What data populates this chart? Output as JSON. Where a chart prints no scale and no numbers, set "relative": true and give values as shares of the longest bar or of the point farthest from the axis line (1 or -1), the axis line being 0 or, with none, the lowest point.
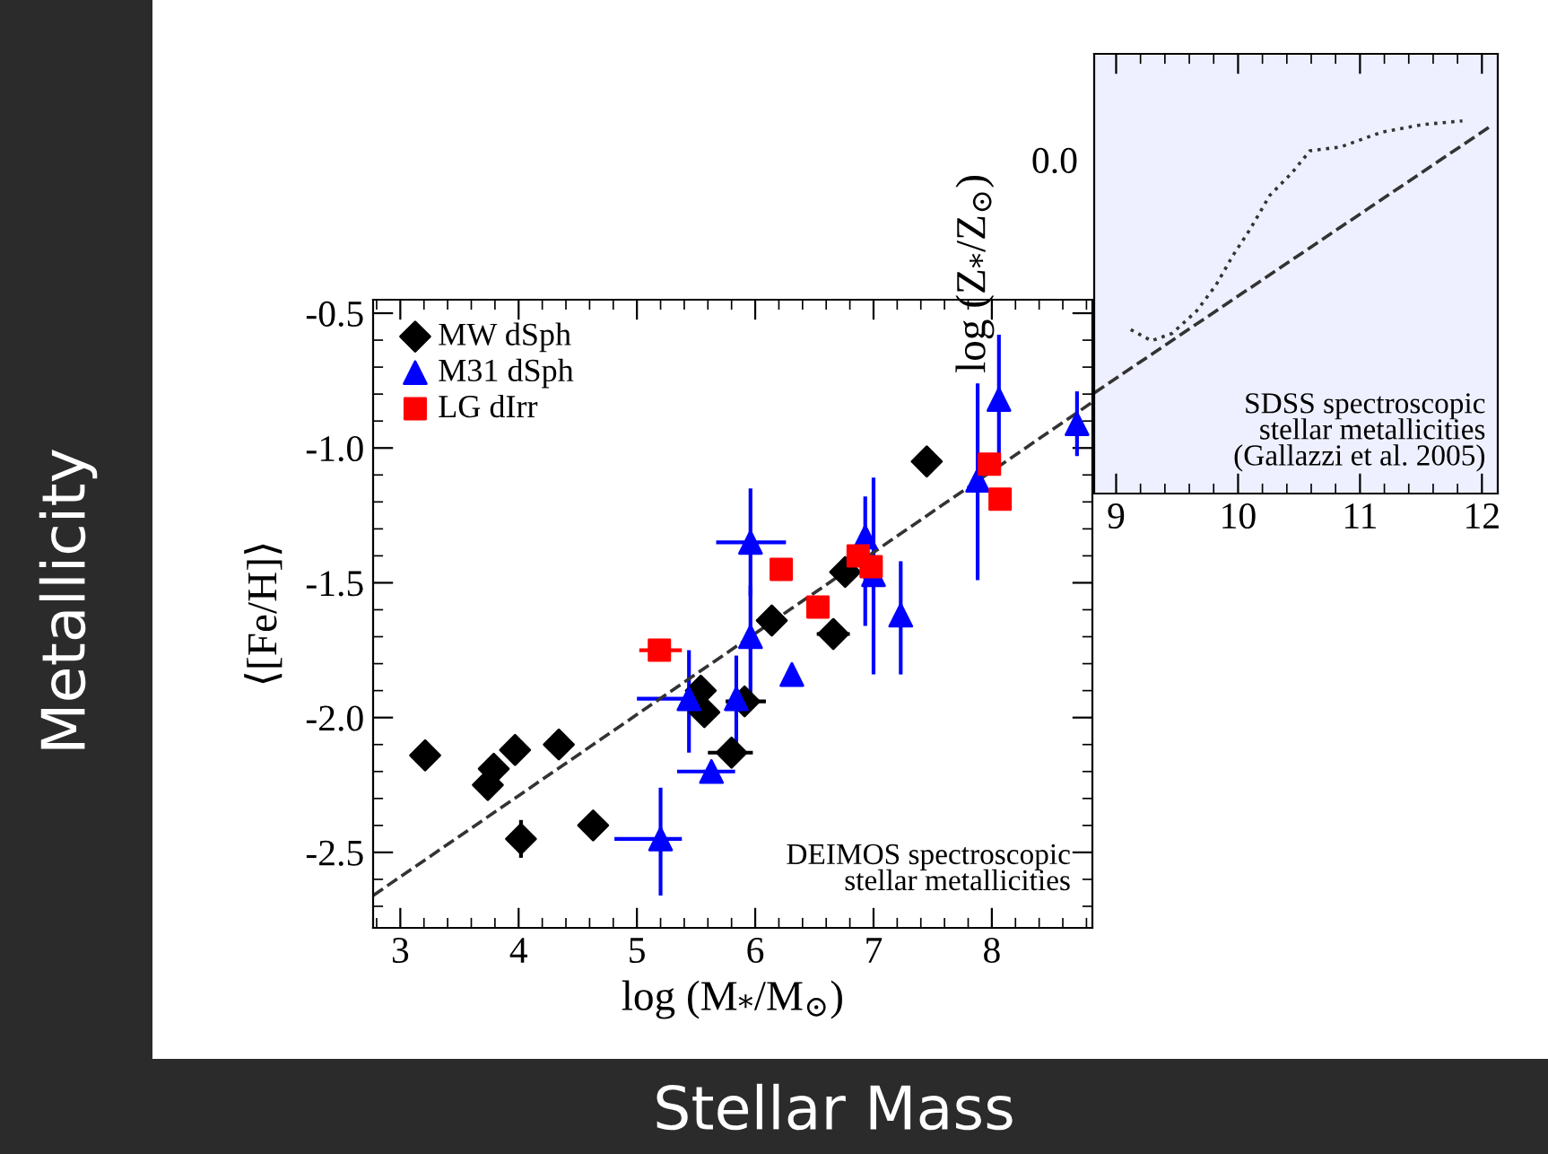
{
  "chart_data": [
    {
      "type": "scatter",
      "xlabel": "log (M$_{*}$/M$_{⊙}$)",
      "ylabel": "⟨[Fe/H]⟩",
      "xlim": [
        2.77,
        8.85
      ],
      "ylim": [
        -2.78,
        -0.45
      ],
      "xticks": [
        3,
        4,
        5,
        6,
        7,
        8
      ],
      "yticks": [
        {
          "value": -0.5,
          "label": "-0.5"
        },
        {
          "value": -1.0,
          "label": "-1.0"
        },
        {
          "value": -1.5,
          "label": "-1.5"
        },
        {
          "value": -2.0,
          "label": "-2.0"
        },
        {
          "value": -2.5,
          "label": "-2.5"
        }
      ],
      "legend": "top left",
      "grid": false,
      "annotations": [
        "DEIMOS spectroscopic\nstellar metallicities"
      ],
      "series": [
        {
          "name": "MW dSph",
          "color": "#000000",
          "marker": "diamond",
          "x": [
            3.21,
            3.79,
            3.74,
            3.97,
            4.34,
            4.02,
            4.63,
            5.54,
            5.57,
            5.8,
            5.91,
            6.14,
            6.66,
            6.76,
            7.45
          ],
          "values": [
            -2.14,
            -2.19,
            -2.25,
            -2.12,
            -2.1,
            -2.45,
            -2.4,
            -1.9,
            -1.98,
            -2.13,
            -1.94,
            -1.64,
            -1.69,
            -1.46,
            -1.05
          ],
          "errors": [
            null,
            null,
            null,
            null,
            null,
            [
              -2.52,
              -2.38
            ],
            null,
            null,
            null,
            null,
            null,
            null,
            null,
            null,
            null
          ],
          "xerrors": [
            null,
            null,
            null,
            null,
            null,
            null,
            null,
            null,
            null,
            [
              5.6,
              5.98
            ],
            [
              5.75,
              6.09
            ],
            null,
            [
              6.52,
              6.8
            ],
            null,
            null
          ]
        },
        {
          "name": "M31 dSph",
          "color": "#0000ff",
          "marker": "triangle",
          "x": [
            5.2,
            5.44,
            5.63,
            5.84,
            5.96,
            5.96,
            6.31,
            6.93,
            7.0,
            7.23,
            7.88,
            8.06,
            8.72
          ],
          "values": [
            -2.45,
            -1.93,
            -2.2,
            -1.93,
            -1.7,
            -1.35,
            -1.84,
            -1.33,
            -1.47,
            -1.62,
            -1.12,
            -0.82,
            -0.91
          ],
          "errors": [
            [
              -2.66,
              -2.26
            ],
            [
              -2.13,
              -1.75
            ],
            null,
            [
              -2.12,
              -1.77
            ],
            [
              -1.97,
              -1.51
            ],
            [
              -1.55,
              -1.15
            ],
            null,
            [
              -1.66,
              -1.18
            ],
            [
              -1.84,
              -1.11
            ],
            [
              -1.84,
              -1.42
            ],
            [
              -1.49,
              -0.76
            ],
            [
              -1.1,
              -0.58
            ],
            [
              -1.03,
              -0.79
            ]
          ],
          "xerrors": [
            [
              4.81,
              5.38
            ],
            [
              5.0,
              5.58
            ],
            [
              5.34,
              5.83
            ],
            null,
            null,
            [
              5.67,
              6.26
            ],
            null,
            null,
            null,
            null,
            null,
            null,
            null
          ]
        },
        {
          "name": "LG dIrr",
          "color": "#ff0000",
          "marker": "square",
          "x": [
            5.19,
            6.22,
            6.53,
            6.87,
            6.98,
            7.98,
            8.07
          ],
          "values": [
            -1.75,
            -1.45,
            -1.59,
            -1.4,
            -1.44,
            -1.06,
            -1.19
          ],
          "xerrors": [
            [
              5.02,
              5.38
            ],
            null,
            null,
            null,
            null,
            null,
            null
          ]
        },
        {
          "type": "line",
          "color": "#333333",
          "line_style": "dashed",
          "x": [
            2.77,
            8.85
          ],
          "values": [
            -2.66,
            -0.83
          ]
        }
      ]
    },
    {
      "type": "line",
      "relative": true,
      "ylabel": "log (Z$_{*}$/Z$_{⊙}$)",
      "xlim": [
        8.82,
        12.13
      ],
      "xticks": [
        9,
        10,
        11,
        12
      ],
      "grid": false,
      "annotations": [
        "SDSS spectroscopic\nstellar metallicities\n(Gallazzi et al. 2005)",
        "0.0"
      ],
      "series": [
        {
          "color": "#333333",
          "line_style": "dotted",
          "x": [
            9.12,
            9.29,
            9.46,
            9.66,
            9.82,
            9.96,
            10.1,
            10.26,
            10.44,
            10.59,
            10.84,
            11.18,
            11.51,
            11.84
          ],
          "values": [
            0.44,
            0.41,
            0.43,
            0.49,
            0.56,
            0.64,
            0.71,
            0.8,
            0.86,
            0.92,
            0.93,
            0.97,
            0.99,
            1.0
          ]
        },
        {
          "color": "#333333",
          "line_style": "dashed",
          "x": [
            8.82,
            12.09
          ],
          "values": [
            0.27,
            0.99
          ]
        }
      ]
    },
    {
      "type": "other",
      "xlabel": "Stellar Mass",
      "ylabel": "Metallicity"
    }
  ]
}
